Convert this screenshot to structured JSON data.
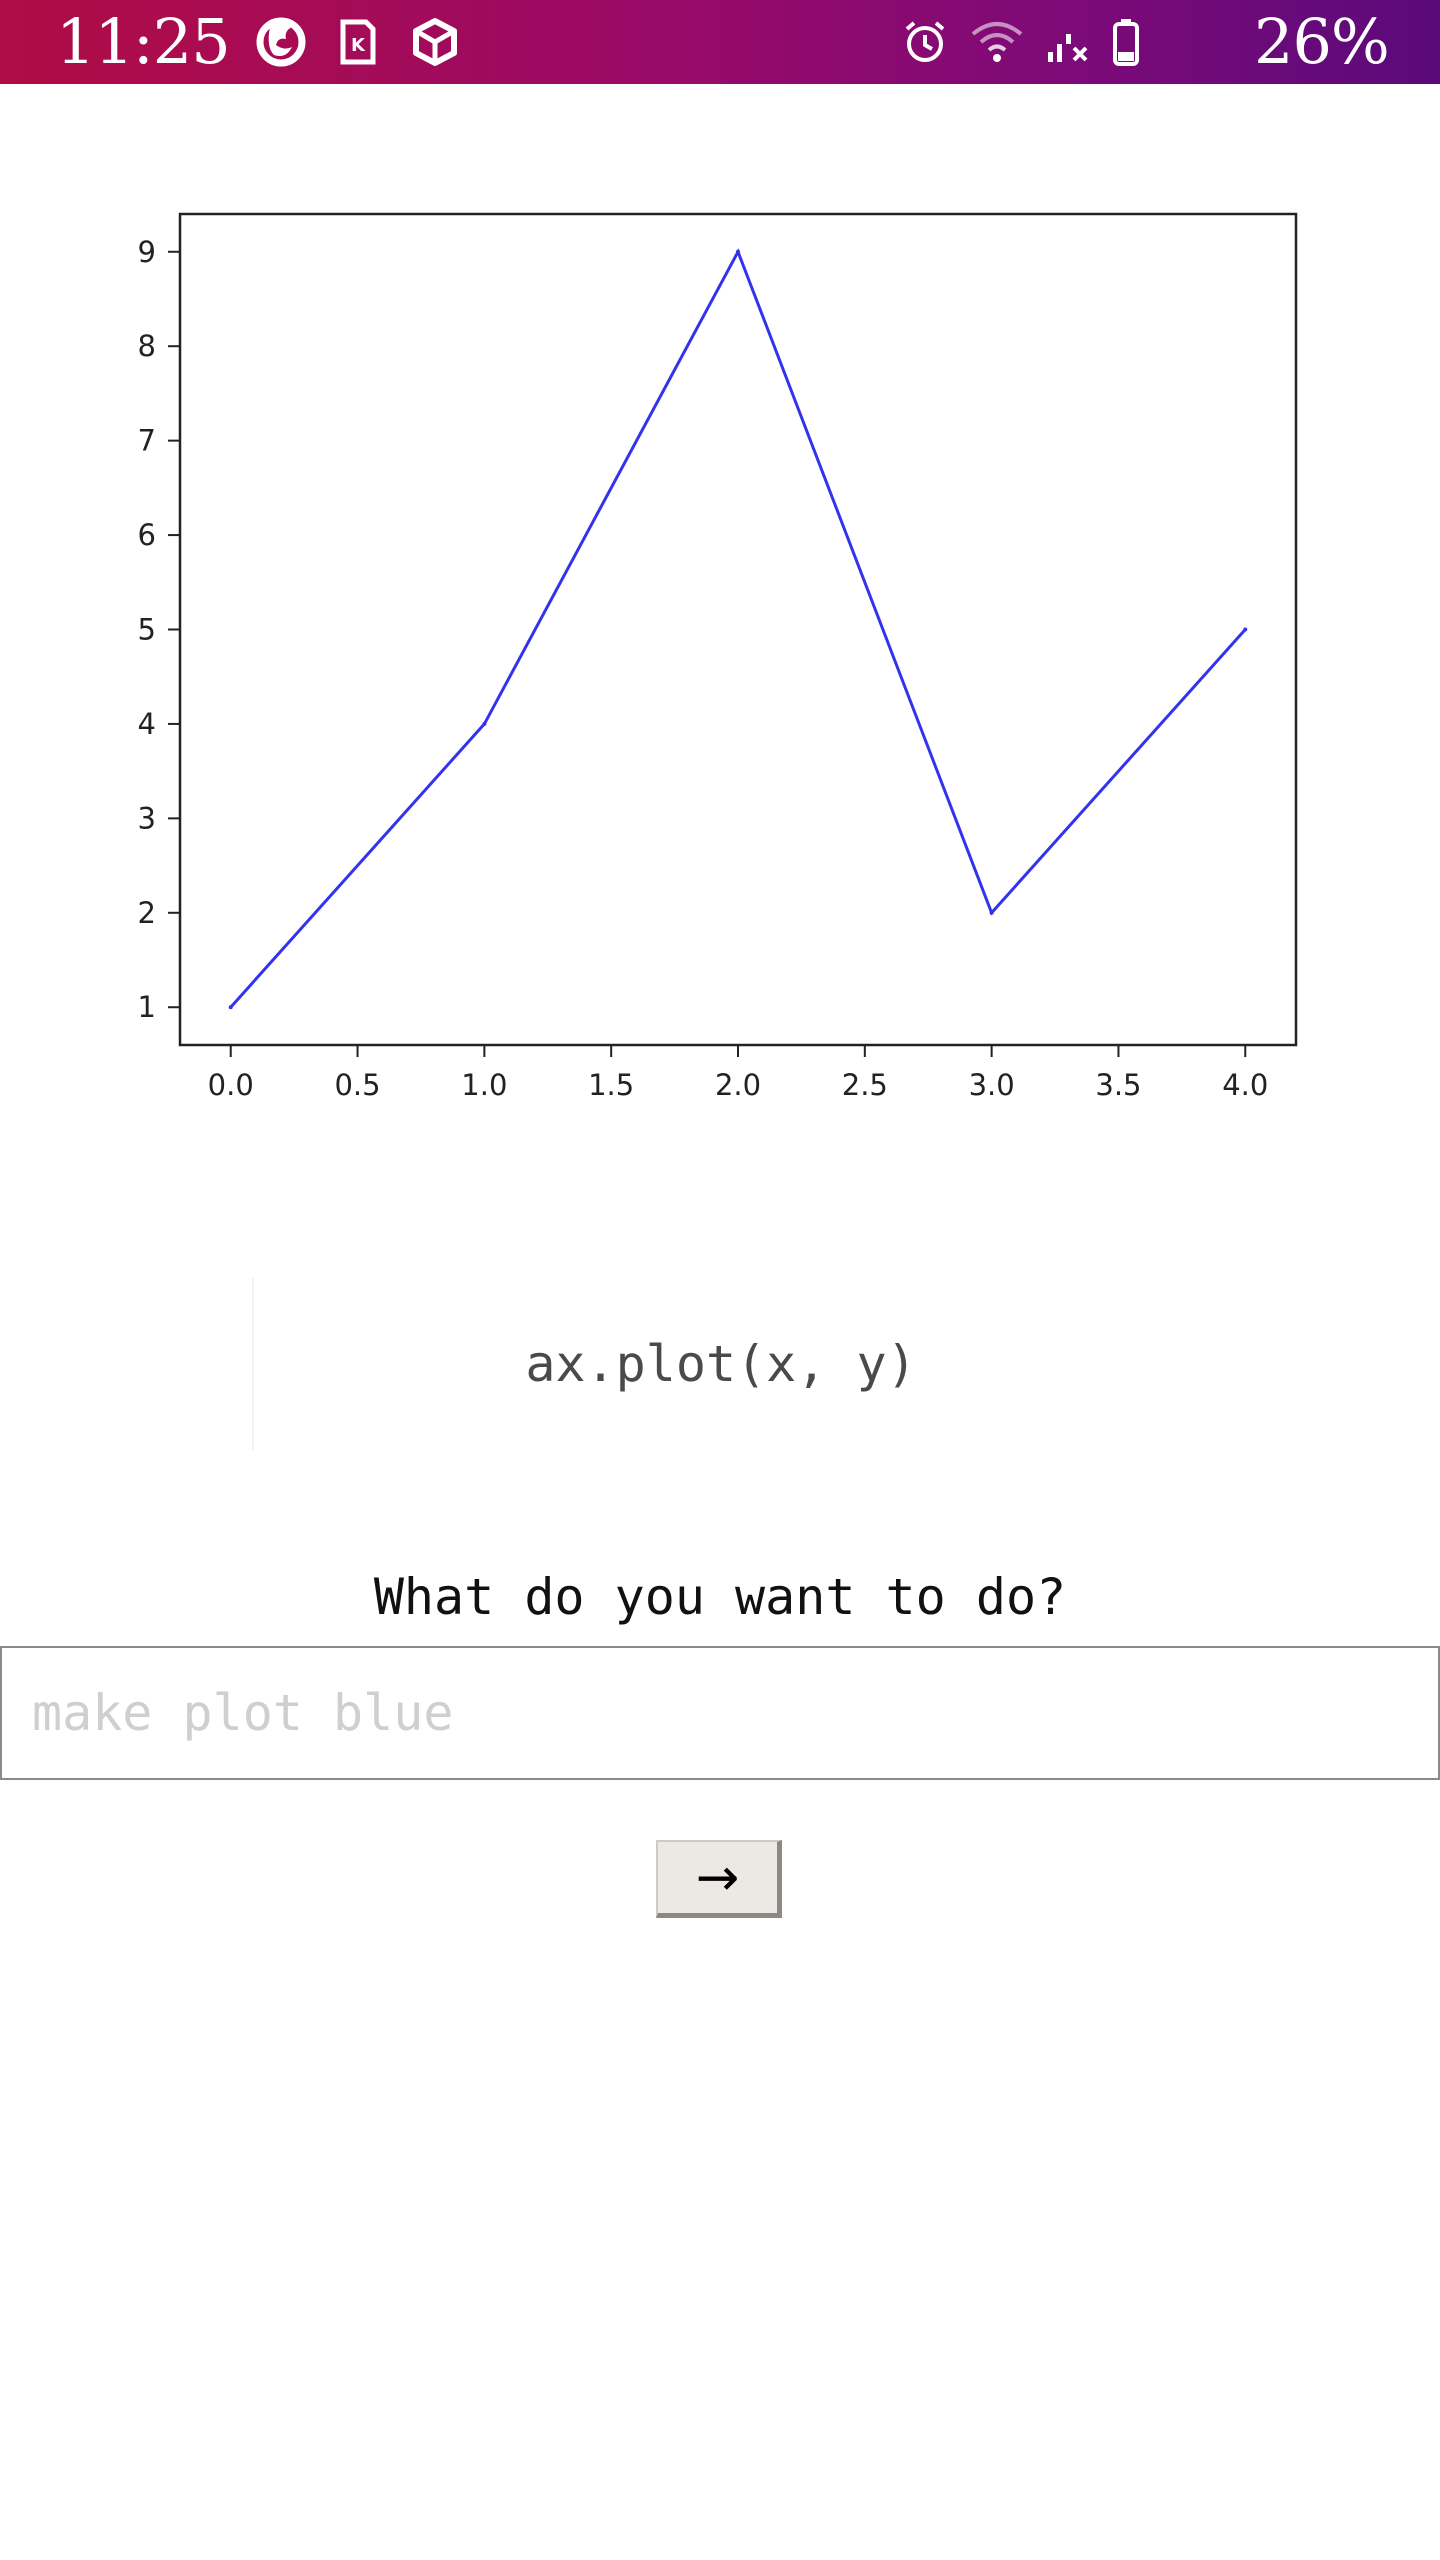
{
  "status_bar": {
    "time": "11:25",
    "battery_percent": "26%",
    "left_icons": [
      "firefox-icon",
      "sim-card-icon",
      "cube-app-icon"
    ],
    "right_icons": [
      "alarm-icon",
      "wifi-icon",
      "signal-no-service-icon",
      "battery-icon"
    ]
  },
  "chart_data": {
    "type": "line",
    "x": [
      0,
      1,
      2,
      3,
      4
    ],
    "y": [
      1,
      4,
      9,
      2,
      5
    ],
    "series": [
      {
        "values": [
          1,
          4,
          9,
          2,
          5
        ],
        "color": "#3333ee"
      }
    ],
    "xlim": [
      -0.2,
      4.2
    ],
    "ylim": [
      0.6,
      9.4
    ],
    "xticks": [
      "0.0",
      "0.5",
      "1.0",
      "1.5",
      "2.0",
      "2.5",
      "3.0",
      "3.5",
      "4.0"
    ],
    "yticks": [
      "1",
      "2",
      "3",
      "4",
      "5",
      "6",
      "7",
      "8",
      "9"
    ],
    "title": "",
    "xlabel": "",
    "ylabel": "",
    "grid": false
  },
  "code": {
    "text": "ax.plot(x, y)"
  },
  "prompt": {
    "label": "What do you want to do?",
    "placeholder": "make plot blue",
    "value": ""
  },
  "submit": {
    "label": "→"
  }
}
